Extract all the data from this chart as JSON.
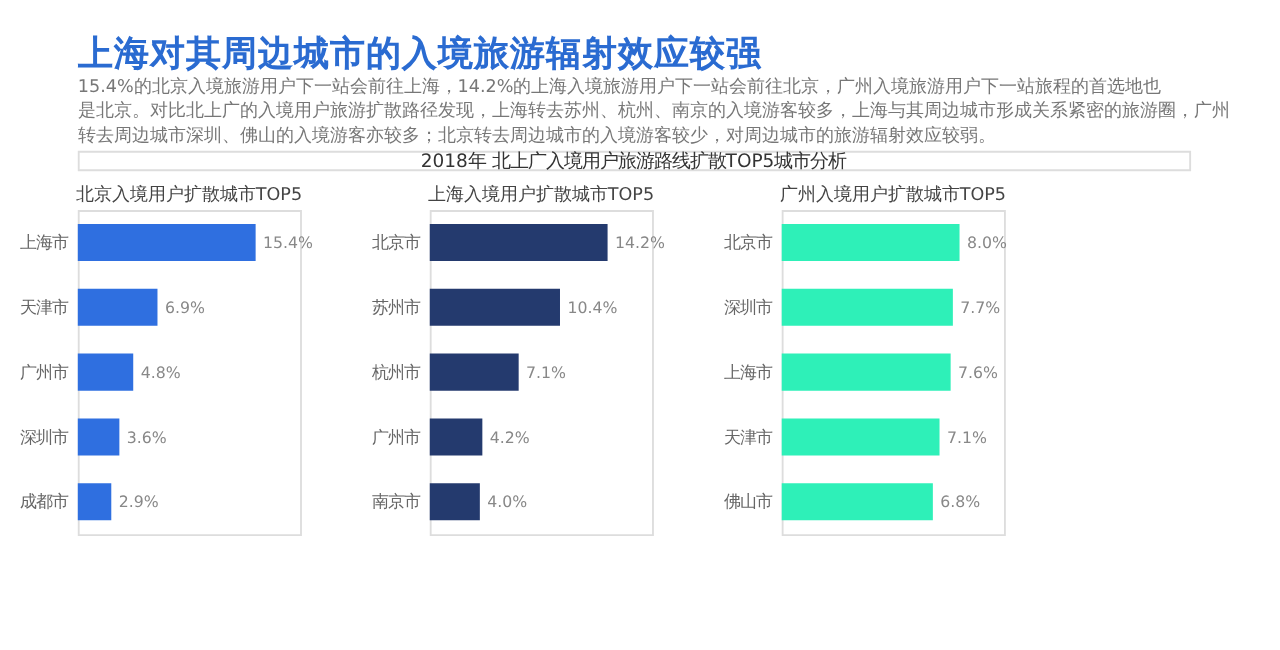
{
  "chart_data": [
    {
      "type": "other",
      "title": "上海对其周边城市的入境旅游辐射效应较强",
      "subtitle": "15.4%的北京入境旅游用户下一站会前往上海，14.2%的上海入境旅游用户下一站会前往北京，广州入境旅游用户下一站旅程的首选地也是北京。对比北上广的入境用户旅游扩散路径发现，上海转去苏州、杭州、南京的入境游客较多，上海与其周边城市形成关系紧密的旅游圈，广州转去周边城市深圳、佛山的入境游客亦较多；北京转去周边城市的入境游客较少，对周边城市的旅游辐射效应较弱。",
      "annotations": [
        "2018年 北上广入境用户旅游路线扩散TOP5城市分析"
      ]
    },
    {
      "type": "bar",
      "orientation": "horizontal",
      "title": "北京入境用户扩散城市TOP5",
      "categories": [
        "上海市",
        "天津市",
        "广州市",
        "深圳市",
        "成都市"
      ],
      "values": [
        15.4,
        6.9,
        4.8,
        3.6,
        2.9
      ],
      "value_labels": [
        "15.4%",
        "6.9%",
        "4.8%",
        "3.6%",
        "2.9%"
      ],
      "color": "#2f6fe0"
    },
    {
      "type": "bar",
      "orientation": "horizontal",
      "title": "上海入境用户扩散城市TOP5",
      "categories": [
        "北京市",
        "苏州市",
        "杭州市",
        "广州市",
        "南京市"
      ],
      "values": [
        14.2,
        10.4,
        7.1,
        4.2,
        4.0
      ],
      "value_labels": [
        "14.2%",
        "10.4%",
        "7.1%",
        "4.2%",
        "4.0%"
      ],
      "color": "#243a6e"
    },
    {
      "type": "bar",
      "orientation": "horizontal",
      "title": "广州入境用户扩散城市TOP5",
      "categories": [
        "北京市",
        "深圳市",
        "上海市",
        "天津市",
        "佛山市"
      ],
      "values": [
        8.0,
        7.7,
        7.6,
        7.1,
        6.8
      ],
      "value_labels": [
        "8.0%",
        "7.7%",
        "7.6%",
        "7.1%",
        "6.8%"
      ],
      "color": "#2ef0b8"
    }
  ]
}
